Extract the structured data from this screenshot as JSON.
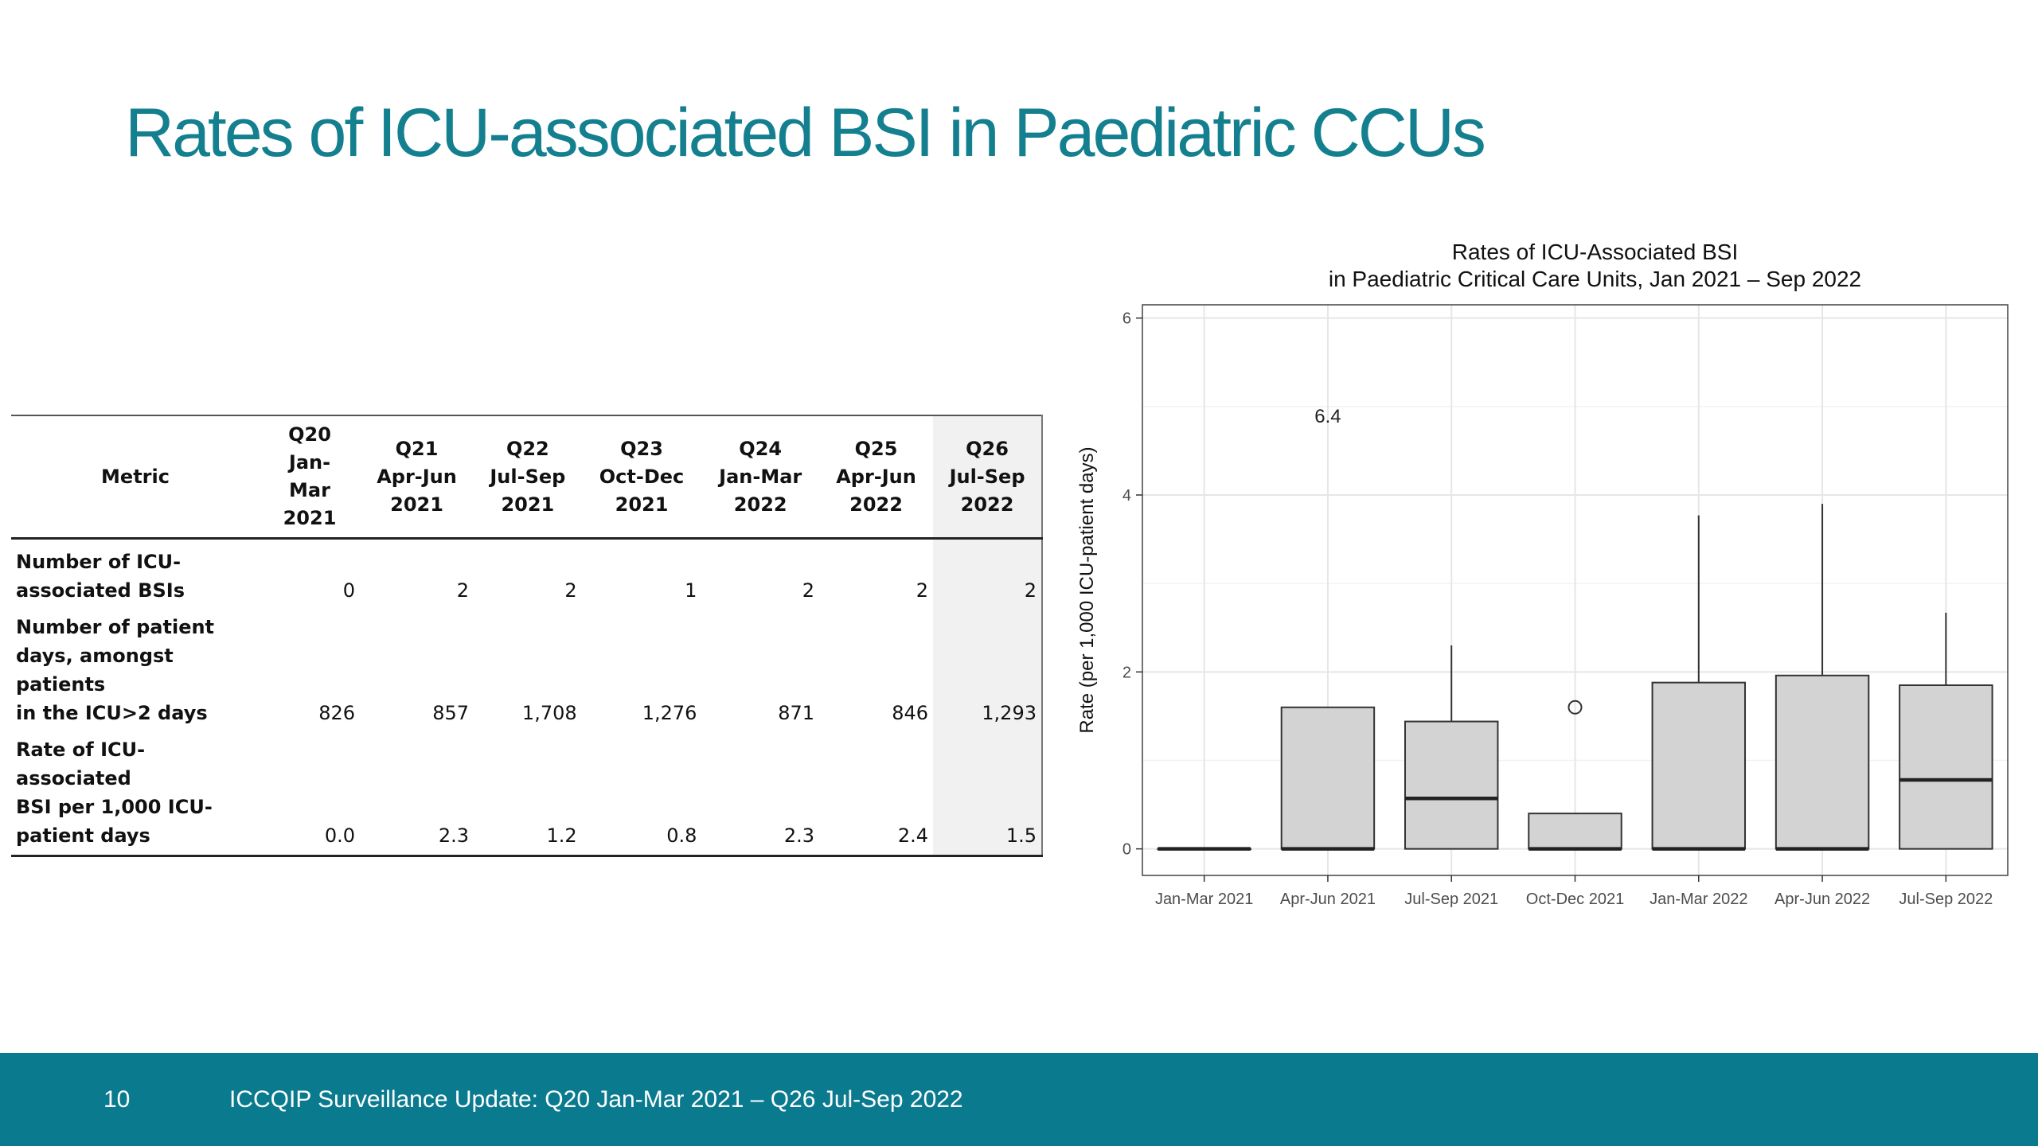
{
  "slide": {
    "title": "Rates of ICU-associated BSI in Paediatric CCUs",
    "page_number": "10",
    "footer": "ICCQIP Surveillance Update: Q20 Jan-Mar 2021 – Q26 Jul-Sep 2022",
    "accent_color": "#14808f",
    "footer_color": "#0a7a8f"
  },
  "table": {
    "metric_header": "Metric",
    "columns": [
      [
        "Q20",
        "Jan-",
        "Mar",
        "2021"
      ],
      [
        "Q21",
        "Apr-Jun",
        "2021"
      ],
      [
        "Q22",
        "Jul-Sep",
        "2021"
      ],
      [
        "Q23",
        "Oct-Dec",
        "2021"
      ],
      [
        "Q24",
        "Jan-Mar",
        "2022"
      ],
      [
        "Q25",
        "Apr-Jun",
        "2022"
      ],
      [
        "Q26",
        "Jul-Sep",
        "2022"
      ]
    ],
    "rows": [
      {
        "label": [
          "Number of ICU-",
          "associated BSIs"
        ],
        "values": [
          "0",
          "2",
          "2",
          "1",
          "2",
          "2",
          "2"
        ]
      },
      {
        "label": [
          "Number of patient",
          "days, amongst patients",
          "in the ICU>2 days"
        ],
        "values": [
          "826",
          "857",
          "1,708",
          "1,276",
          "871",
          "846",
          "1,293"
        ]
      },
      {
        "label": [
          "Rate of ICU-associated",
          "BSI per 1,000 ICU-",
          "patient days"
        ],
        "values": [
          "0.0",
          "2.3",
          "1.2",
          "0.8",
          "2.3",
          "2.4",
          "1.5"
        ]
      }
    ]
  },
  "chart_data": {
    "type": "boxplot",
    "title": [
      "Rates of ICU-Associated BSI",
      "in Paediatric Critical Care Units, Jan 2021 – Sep 2022"
    ],
    "xlabel": "",
    "ylabel": "Rate (per 1,000 ICU-patient days)",
    "ylim": [
      -0.3,
      6.15
    ],
    "yticks": [
      0,
      2,
      4,
      6
    ],
    "categories": [
      "Jan-Mar 2021",
      "Apr-Jun 2021",
      "Jul-Sep 2021",
      "Oct-Dec 2021",
      "Jan-Mar 2022",
      "Apr-Jun 2022",
      "Jul-Sep 2022"
    ],
    "boxes": [
      {
        "min": 0,
        "q1": 0,
        "median": 0,
        "q3": 0,
        "max": 0
      },
      {
        "min": 0,
        "q1": 0,
        "median": 0,
        "q3": 1.6,
        "max": 1.6
      },
      {
        "min": 0,
        "q1": 0,
        "median": 0.57,
        "q3": 1.44,
        "max": 2.3
      },
      {
        "min": 0,
        "q1": 0,
        "median": 0,
        "q3": 0.4,
        "max": 0.4
      },
      {
        "min": 0,
        "q1": 0,
        "median": 0,
        "q3": 1.88,
        "max": 3.77
      },
      {
        "min": 0,
        "q1": 0,
        "median": 0,
        "q3": 1.96,
        "max": 3.9
      },
      {
        "min": 0,
        "q1": 0,
        "median": 0.78,
        "q3": 1.85,
        "max": 2.67
      }
    ],
    "outliers": [
      {
        "category": "Oct-Dec 2021",
        "value": 1.6
      }
    ],
    "annotations": [
      {
        "category": "Apr-Jun 2021",
        "text": "6.4",
        "y": 4.9
      }
    ],
    "box_fill": "#d3d3d3",
    "grid": true
  }
}
